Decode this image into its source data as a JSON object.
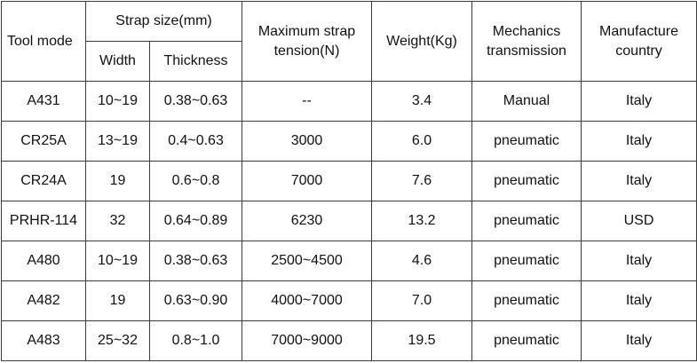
{
  "header": {
    "tool_mode": "Tool mode",
    "strap_size": "Strap size(mm)",
    "width": "Width",
    "thickness": "Thickness",
    "max_tension_line1": "Maximum strap",
    "max_tension_line2": "tension(N)",
    "weight": "Weight(Kg)",
    "mechanics_line1": "Mechanics",
    "mechanics_line2": "transmission",
    "country_line1": "Manufacture",
    "country_line2": "country"
  },
  "rows": [
    {
      "mode": "A431",
      "width": "10~19",
      "thickness": "0.38~0.63",
      "tension": "--",
      "weight": "3.4",
      "mechanics": "Manual",
      "country": "Italy"
    },
    {
      "mode": "CR25A",
      "width": "13~19",
      "thickness": "0.4~0.63",
      "tension": "3000",
      "weight": "6.0",
      "mechanics": "pneumatic",
      "country": "Italy"
    },
    {
      "mode": "CR24A",
      "width": "19",
      "thickness": "0.6~0.8",
      "tension": "7000",
      "weight": "7.6",
      "mechanics": "pneumatic",
      "country": "Italy"
    },
    {
      "mode": "PRHR-114",
      "width": "32",
      "thickness": "0.64~0.89",
      "tension": "6230",
      "weight": "13.2",
      "mechanics": "pneumatic",
      "country": "USD"
    },
    {
      "mode": "A480",
      "width": "10~19",
      "thickness": "0.38~0.63",
      "tension": "2500~4500",
      "weight": "4.6",
      "mechanics": "pneumatic",
      "country": "Italy"
    },
    {
      "mode": "A482",
      "width": "19",
      "thickness": "0.63~0.90",
      "tension": "4000~7000",
      "weight": "7.0",
      "mechanics": "pneumatic",
      "country": "Italy"
    },
    {
      "mode": "A483",
      "width": "25~32",
      "thickness": "0.8~1.0",
      "tension": "7000~9000",
      "weight": "19.5",
      "mechanics": "pneumatic",
      "country": "Italy"
    }
  ]
}
